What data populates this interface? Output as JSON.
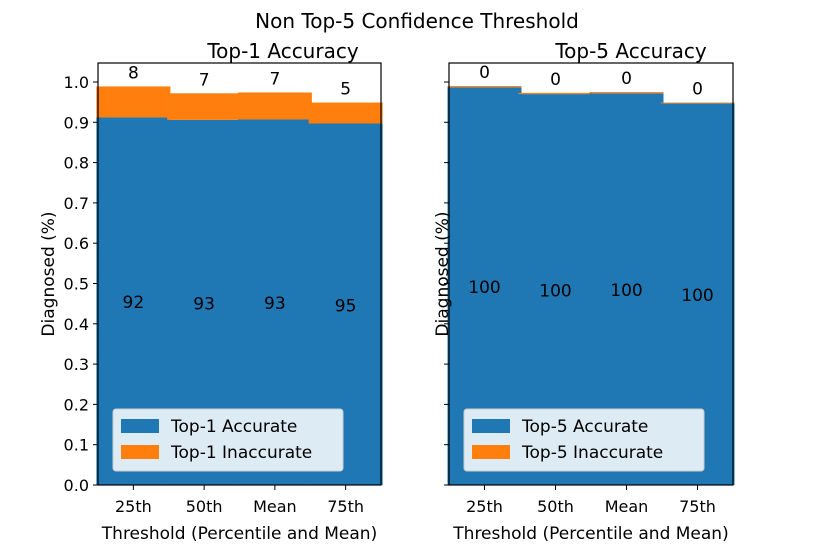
{
  "figure_title": "Non Top-5 Confidence Threshold",
  "colors": {
    "accurate": "#1f77b4",
    "inaccurate": "#ff7f0e"
  },
  "chart_data": [
    {
      "type": "bar",
      "stacked": true,
      "title": "Top-1 Accuracy",
      "xlabel": "Threshold (Percentile and Mean)",
      "ylabel": "Diagnosed (%)",
      "ylim": [
        0,
        1.0
      ],
      "yticks": [
        "0.0",
        "0.1",
        "0.2",
        "0.3",
        "0.4",
        "0.5",
        "0.6",
        "0.7",
        "0.8",
        "0.9",
        "1.0"
      ],
      "categories": [
        "25th",
        "50th",
        "Mean",
        "75th"
      ],
      "series": [
        {
          "name": "Top-1 Accurate",
          "color": "#1f77b4",
          "values": [
            0.912,
            0.906,
            0.907,
            0.897
          ],
          "labels": [
            "92",
            "93",
            "93",
            "95"
          ]
        },
        {
          "name": "Top-1 Inaccurate",
          "color": "#ff7f0e",
          "values": [
            0.077,
            0.066,
            0.067,
            0.052
          ],
          "labels": [
            "8",
            "7",
            "7",
            "5"
          ]
        }
      ],
      "legend_position": "lower-left",
      "grid": false
    },
    {
      "type": "bar",
      "stacked": true,
      "title": "Top-5 Accuracy",
      "xlabel": "Threshold (Percentile and Mean)",
      "ylabel": "Diagnosed (%)",
      "ylim": [
        0,
        1.0
      ],
      "yticks": [],
      "categories": [
        "25th",
        "50th",
        "Mean",
        "75th"
      ],
      "series": [
        {
          "name": "Top-5 Accurate",
          "color": "#1f77b4",
          "values": [
            0.987,
            0.97,
            0.972,
            0.947
          ],
          "labels": [
            "100",
            "100",
            "100",
            "100"
          ]
        },
        {
          "name": "Top-5 Inaccurate",
          "color": "#ff7f0e",
          "values": [
            0.003,
            0.003,
            0.003,
            0.002
          ],
          "labels": [
            "0",
            "0",
            "0",
            "0"
          ]
        }
      ],
      "legend_position": "lower-left",
      "grid": false
    }
  ]
}
